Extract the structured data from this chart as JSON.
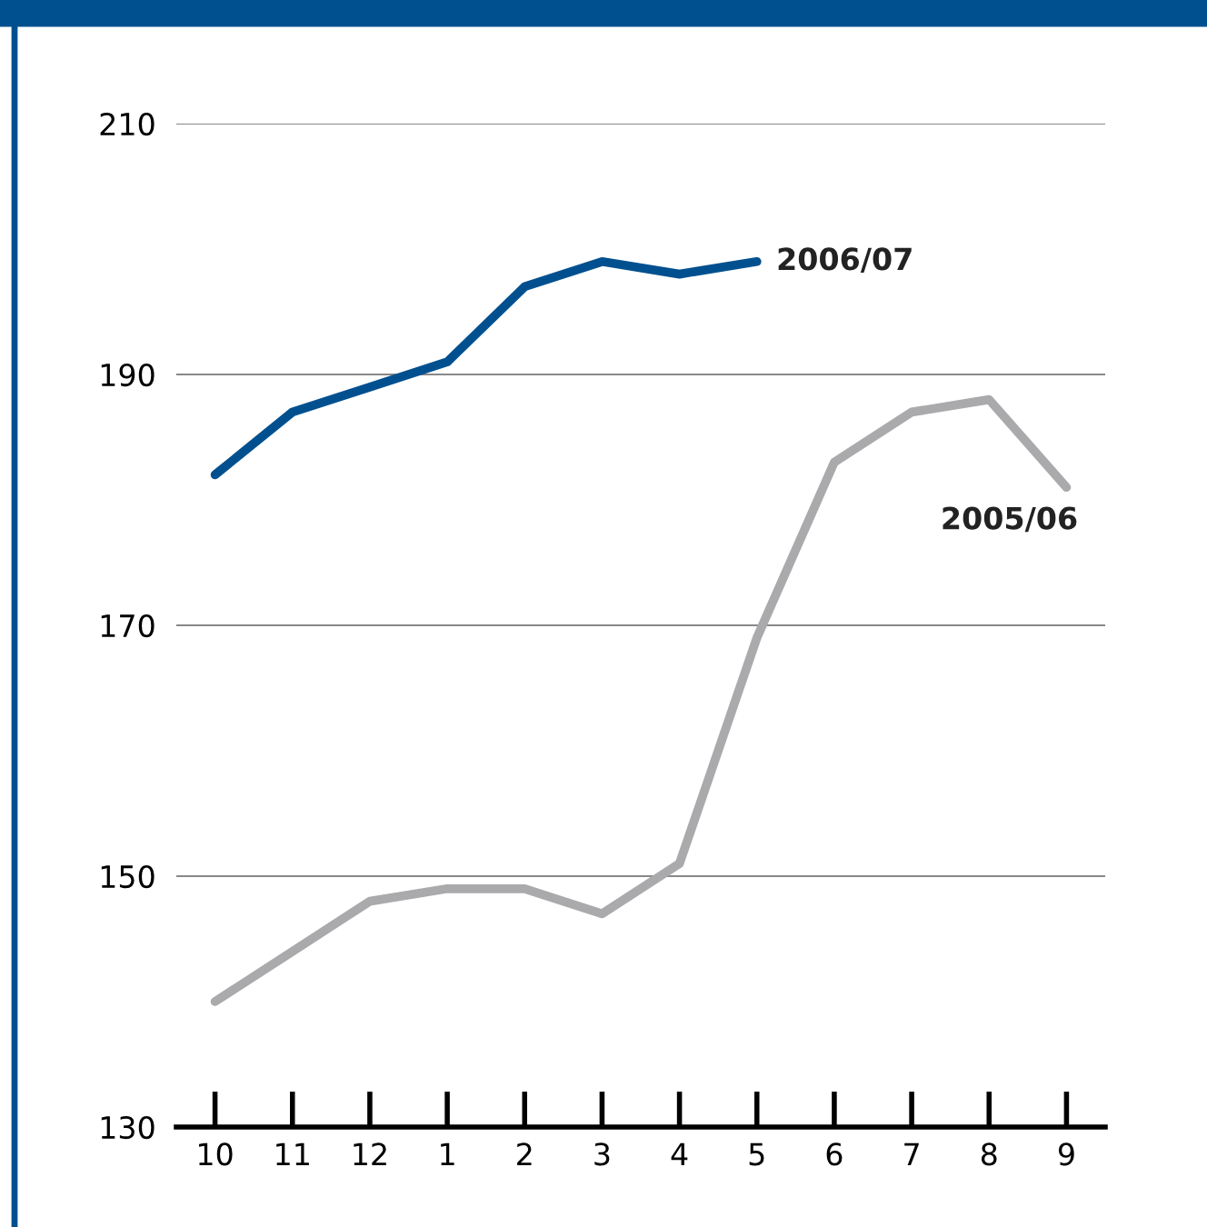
{
  "chart_data": {
    "type": "line",
    "categories": [
      "10",
      "11",
      "12",
      "1",
      "2",
      "3",
      "4",
      "5",
      "6",
      "7",
      "8",
      "9"
    ],
    "series": [
      {
        "name": "2006/07",
        "color": "#00508f",
        "values": [
          182,
          187,
          189,
          191,
          197,
          199,
          198,
          199,
          null,
          null,
          null,
          null
        ]
      },
      {
        "name": "2005/06",
        "color": "#aaaaad",
        "values": [
          140,
          144,
          148,
          149,
          149,
          147,
          151,
          169,
          183,
          187,
          188,
          181
        ]
      }
    ],
    "ylim": [
      130,
      210
    ],
    "yticks": [
      130,
      150,
      170,
      190,
      210
    ],
    "grid": "y",
    "legend": false,
    "marker": "none",
    "line_style": "solid"
  }
}
